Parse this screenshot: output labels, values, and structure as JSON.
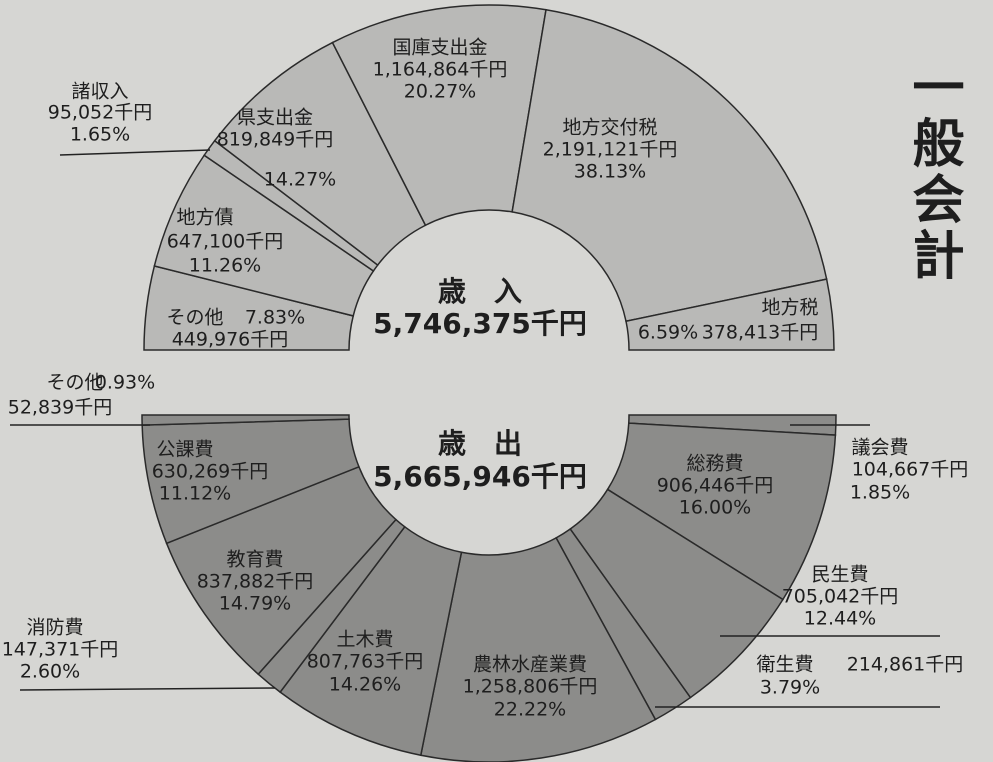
{
  "title": "一般会計",
  "chart_data": [
    {
      "type": "donut",
      "center_label": "歳　入",
      "center_value": "5,746,375千円",
      "color": "#b9b9b7",
      "categories": [
        "その他",
        "地方債",
        "諸収入",
        "県支出金",
        "国庫支出金",
        "地方交付税",
        "地方税"
      ],
      "values": [
        449976,
        647100,
        95052,
        819849,
        1164864,
        2191121,
        378413
      ],
      "value_labels": [
        "449,976千円",
        "647,100千円",
        "95,052千円",
        "819,849千円",
        "1,164,864千円",
        "2,191,121千円",
        "378,413千円"
      ],
      "percent_labels": [
        "7.83%",
        "11.26%",
        "1.65%",
        "14.27%",
        "20.27%",
        "38.13%",
        "6.59%"
      ]
    },
    {
      "type": "donut",
      "center_label": "歳　出",
      "center_value": "5,665,946千円",
      "color": "#8c8c8a",
      "categories": [
        "議会費",
        "総務費",
        "民生費",
        "衛生費",
        "農林水産業費",
        "土木費",
        "消防費",
        "教育費",
        "公課費",
        "その他"
      ],
      "values": [
        104667,
        906446,
        705042,
        214861,
        1258806,
        807763,
        147371,
        837882,
        630269,
        52839
      ],
      "value_labels": [
        "104,667千円",
        "906,446千円",
        "705,042千円",
        "214,861千円",
        "1,258,806千円",
        "807,763千円",
        "147,371千円",
        "837,882千円",
        "630,269千円",
        "52,839千円"
      ],
      "percent_labels": [
        "1.85%",
        "16.00%",
        "12.44%",
        "3.79%",
        "22.22%",
        "14.26%",
        "2.60%",
        "14.79%",
        "11.12%",
        "0.93%"
      ]
    }
  ]
}
